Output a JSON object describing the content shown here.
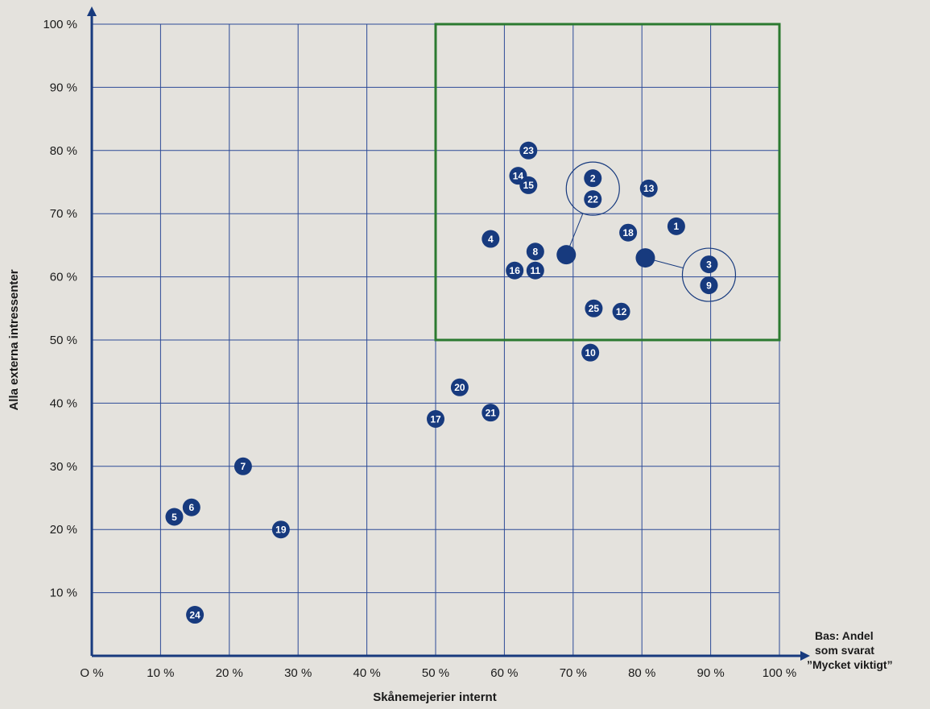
{
  "chart_data": {
    "type": "scatter",
    "xlabel": "Skånemejerier internt",
    "ylabel": "Alla externa intressenter",
    "note": [
      "Bas: Andel",
      "som svarat",
      "”Mycket viktigt”"
    ],
    "xlim": [
      0,
      100
    ],
    "ylim": [
      0,
      100
    ],
    "x_ticks": [
      "O %",
      "10 %",
      "20 %",
      "30 %",
      "40 %",
      "50 %",
      "60 %",
      "70 %",
      "80 %",
      "90 %",
      "100 %"
    ],
    "y_ticks": [
      "10 %",
      "20 %",
      "30 %",
      "40 %",
      "50 %",
      "60 %",
      "70 %",
      "80 %",
      "90 %",
      "100 %"
    ],
    "grid": true,
    "colors": {
      "marker": "#173a7e",
      "grid": "#2c4a97",
      "axis": "#173a7e",
      "highlight": "#2b7a30"
    },
    "highlight_region": {
      "x": [
        50,
        100
      ],
      "y": [
        50,
        100
      ]
    },
    "points": [
      {
        "label": "1",
        "x": 85,
        "y": 68
      },
      {
        "label": "4",
        "x": 58,
        "y": 66
      },
      {
        "label": "5",
        "x": 12,
        "y": 22
      },
      {
        "label": "6",
        "x": 14.5,
        "y": 23.5
      },
      {
        "label": "7",
        "x": 22,
        "y": 30
      },
      {
        "label": "8",
        "x": 64.5,
        "y": 64
      },
      {
        "label": "10",
        "x": 72.5,
        "y": 48
      },
      {
        "label": "11",
        "x": 64.5,
        "y": 61
      },
      {
        "label": "12",
        "x": 77,
        "y": 54.5
      },
      {
        "label": "13",
        "x": 81,
        "y": 74
      },
      {
        "label": "14",
        "x": 62,
        "y": 76
      },
      {
        "label": "15",
        "x": 63.5,
        "y": 74.5
      },
      {
        "label": "16",
        "x": 61.5,
        "y": 61
      },
      {
        "label": "17",
        "x": 50,
        "y": 37.5
      },
      {
        "label": "18",
        "x": 78,
        "y": 67
      },
      {
        "label": "19",
        "x": 27.5,
        "y": 20
      },
      {
        "label": "20",
        "x": 53.5,
        "y": 42.5
      },
      {
        "label": "21",
        "x": 58,
        "y": 38.5
      },
      {
        "label": "23",
        "x": 63.5,
        "y": 80
      },
      {
        "label": "24",
        "x": 15,
        "y": 6.5
      },
      {
        "label": "25",
        "x": 73,
        "y": 55
      }
    ],
    "groups": [
      {
        "x": 69,
        "y": 63.5,
        "labels": [
          "2",
          "22"
        ]
      },
      {
        "x": 80.5,
        "y": 63,
        "labels": [
          "3",
          "9"
        ]
      }
    ]
  }
}
